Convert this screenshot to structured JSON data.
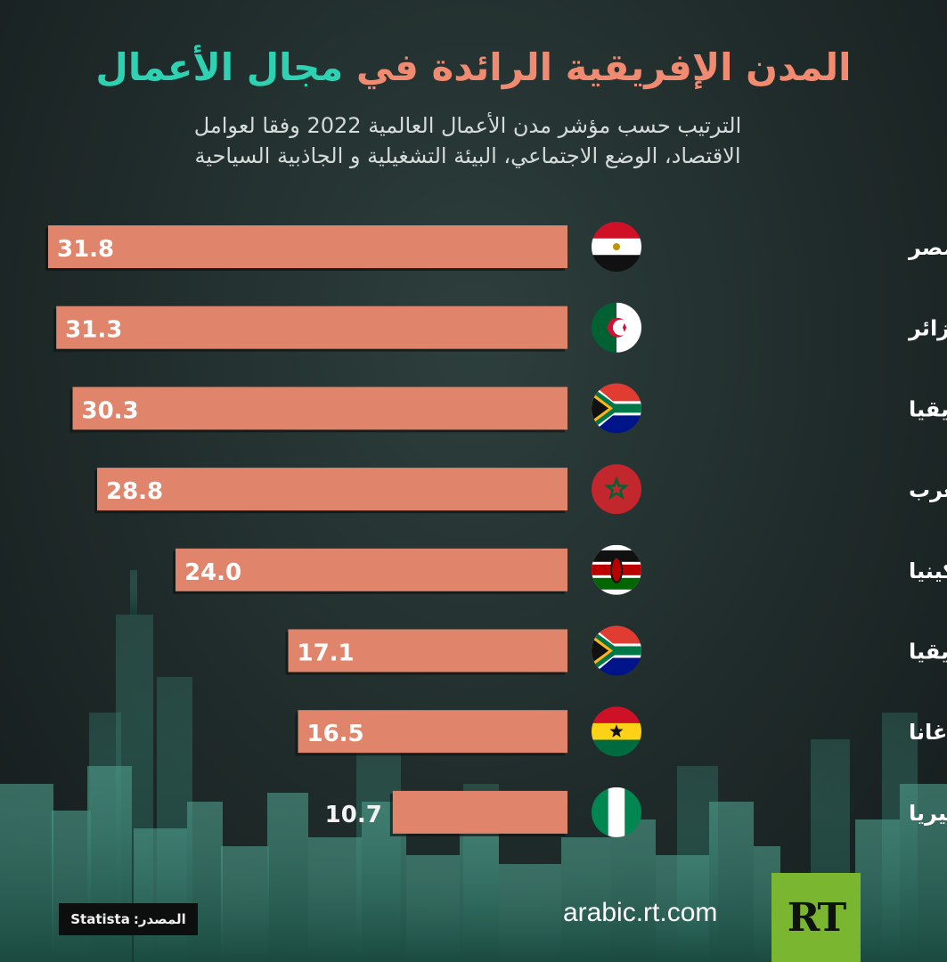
{
  "header": {
    "title_part1": "المدن الإفريقية الرائدة في",
    "title_part2": "مجال الأعمال",
    "subtitle_line1": "الترتيب حسب مؤشر مدن الأعمال العالمية 2022 وفقا لعوامل",
    "subtitle_line2": "الاقتصاد، الوضع الاجتماعي، البيئة التشغيلية و الجاذبية السياحية"
  },
  "chart_data": {
    "type": "bar",
    "orientation": "horizontal",
    "title": "المدن الإفريقية الرائدة في مجال الأعمال",
    "categories": [
      "القاهرة - مصر",
      "الجزائر - الجزائر",
      "جوهانسبورغ - جنوب إفريقيا",
      "الدار البيضاء - المغرب",
      "نيروبي - كينيا",
      "كيب تاون - جنوب إفريقيا",
      "أكرا - غانا",
      "لاغوس - نيجيريا"
    ],
    "values": [
      31.8,
      31.3,
      30.3,
      28.8,
      24.0,
      17.1,
      16.5,
      10.7
    ],
    "value_labels": [
      "31.8",
      "31.3",
      "30.3",
      "28.8",
      "24.0",
      "17.1",
      "16.5",
      "10.7"
    ],
    "flags": [
      "egypt-flag",
      "algeria-flag",
      "south-africa-flag",
      "morocco-flag",
      "kenya-flag",
      "south-africa-flag",
      "ghana-flag",
      "nigeria-flag"
    ],
    "xlim": [
      0,
      33
    ],
    "bar_color": "#e0856c"
  },
  "footer": {
    "source_label": "المصدر:",
    "source_value": "Statista",
    "site": "arabic.rt.com",
    "logo_text": "RT",
    "logo_color": "#7ab62f"
  }
}
